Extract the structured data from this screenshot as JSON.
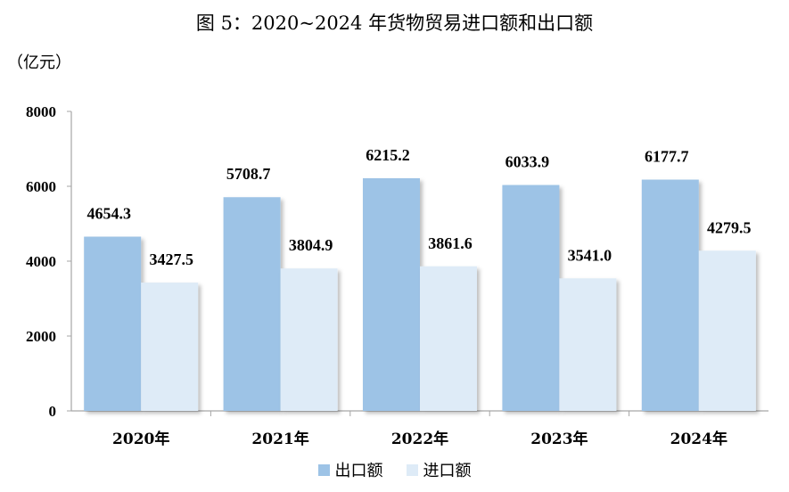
{
  "title": "图 5：2020~2024 年货物贸易进口额和出口额",
  "unit": "（亿元）",
  "chart_data": {
    "type": "bar",
    "categories": [
      "2020年",
      "2021年",
      "2022年",
      "2023年",
      "2024年"
    ],
    "series": [
      {
        "name": "出口额",
        "values": [
          4654.3,
          5708.7,
          6215.2,
          6033.9,
          6177.7
        ],
        "labels": [
          "4654.3",
          "5708.7",
          "6215.2",
          "6033.9",
          "6177.7"
        ],
        "color": "#9dc3e6"
      },
      {
        "name": "进口额",
        "values": [
          3427.5,
          3804.9,
          3861.6,
          3541.0,
          4279.5
        ],
        "labels": [
          "3427.5",
          "3804.9",
          "3861.6",
          "3541.0",
          "4279.5"
        ],
        "color": "#deebf7"
      }
    ],
    "ylim": [
      0,
      8000
    ],
    "yticks": [
      "0",
      "2000",
      "4000",
      "6000",
      "8000"
    ],
    "grid": false,
    "legend_position": "bottom"
  }
}
